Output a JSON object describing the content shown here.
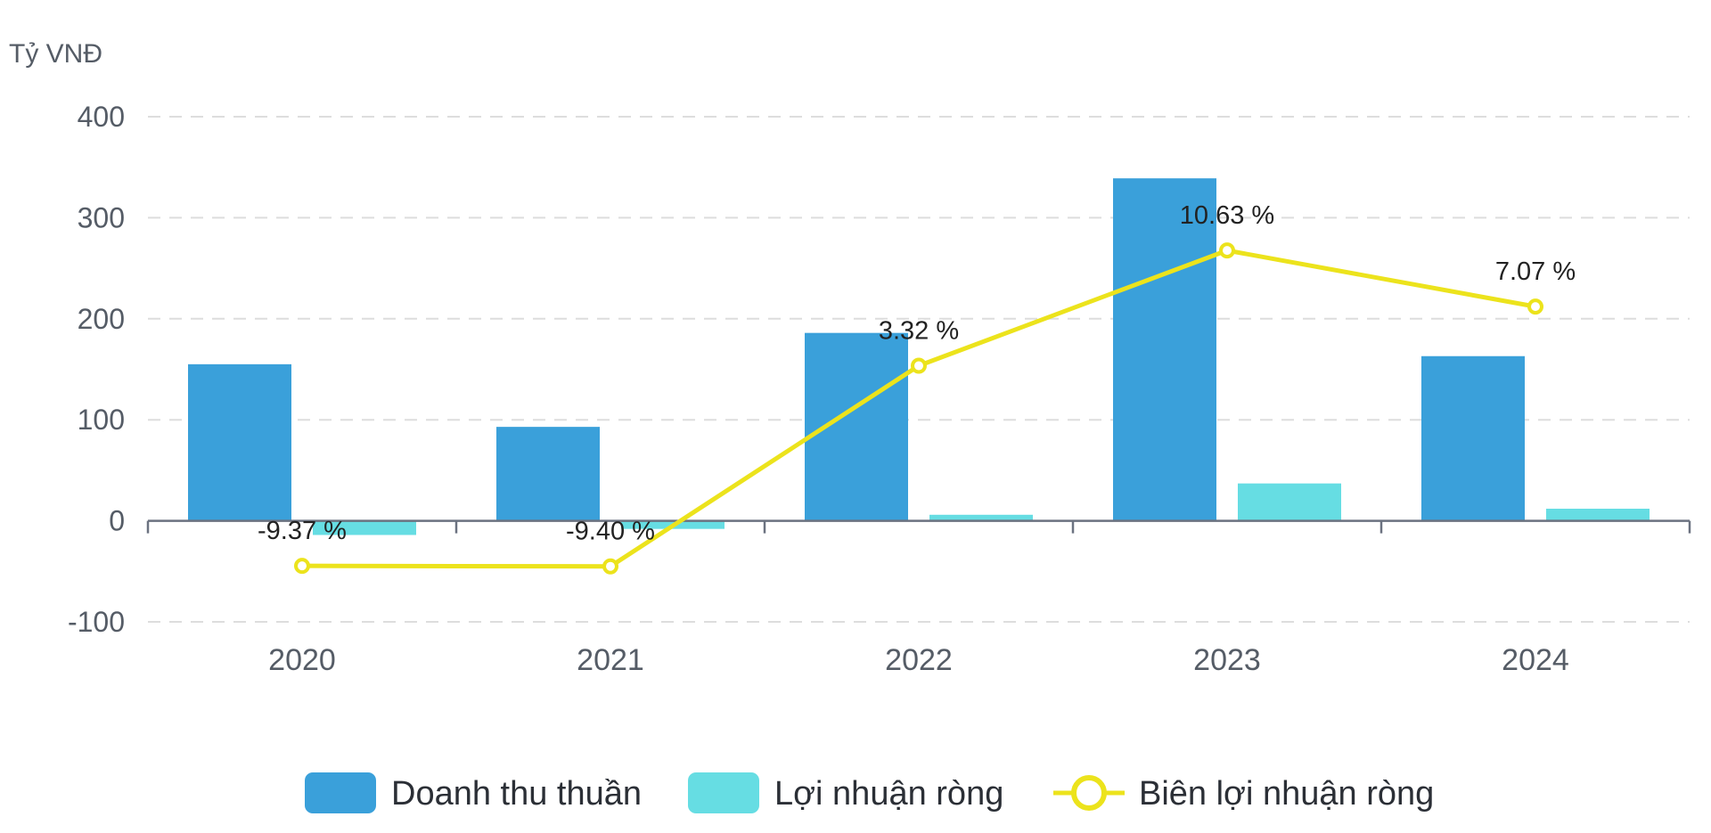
{
  "chart_data": {
    "type": "bar",
    "unit_label": "Tỷ VNĐ",
    "categories": [
      "2020",
      "2021",
      "2022",
      "2023",
      "2024"
    ],
    "ylim": [
      -100,
      400
    ],
    "yticks": [
      -100,
      0,
      100,
      200,
      300,
      400
    ],
    "ytick_labels": [
      "-100",
      "0",
      "100",
      "200",
      "300",
      "400"
    ],
    "grid": true,
    "legend_position": "bottom-center",
    "series": [
      {
        "name": "Doanh thu thuần",
        "type": "bar",
        "color": "#3aa0da",
        "values": [
          155,
          93,
          186,
          339,
          163
        ]
      },
      {
        "name": "Lợi nhuận ròng",
        "type": "bar",
        "color": "#66dde3",
        "values": [
          -14,
          -8,
          6,
          37,
          12
        ]
      },
      {
        "name": "Biên lợi nhuận ròng",
        "type": "line",
        "color": "#ece31c",
        "values": [
          -9.37,
          -9.4,
          3.32,
          10.63,
          7.07
        ],
        "labels": [
          "-9.37 %",
          "-9.40 %",
          "3.32 %",
          "10.63 %",
          "7.07 %"
        ],
        "unit": "%"
      }
    ]
  }
}
